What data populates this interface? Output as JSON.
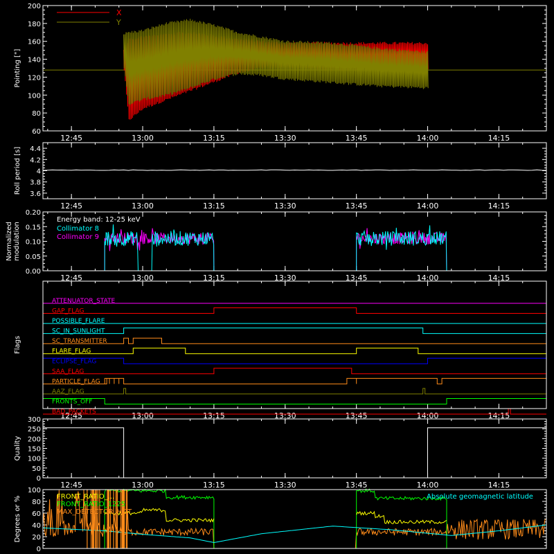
{
  "colors": {
    "background": "#000000",
    "axis": "#ffffff",
    "red": "#ff0000",
    "olive": "#808000",
    "cyan": "#00ffff",
    "magenta": "#ff00ff",
    "green": "#00ff00",
    "yellow": "#ffff00",
    "orange": "#ff8c1a",
    "blue": "#0000ff",
    "white": "#ffffff"
  },
  "chart_data": [
    {
      "id": "pointing",
      "type": "line",
      "ylabel": "Pointing [\"]",
      "xlim": [
        "12:39",
        "14:25"
      ],
      "ylim": [
        60,
        200
      ],
      "yticks": [
        60,
        80,
        100,
        120,
        140,
        160,
        180,
        200
      ],
      "xticks": [
        "12:45",
        "13:00",
        "13:15",
        "13:30",
        "13:45",
        "14:00",
        "14:15"
      ],
      "legend": {
        "position": "top-left",
        "entries": [
          "X",
          "Y"
        ]
      },
      "series": [
        {
          "name": "X",
          "color": "red",
          "x": [
            "12:56",
            "12:57",
            "13:00",
            "13:05",
            "13:10",
            "13:15",
            "13:20",
            "13:25",
            "13:30",
            "13:40",
            "13:50",
            "14:00"
          ],
          "upper": [
            150,
            162,
            165,
            168,
            170,
            166,
            162,
            160,
            158,
            158,
            158,
            158
          ],
          "lower": [
            128,
            72,
            85,
            95,
            105,
            115,
            125,
            130,
            132,
            128,
            128,
            128
          ]
        },
        {
          "name": "Y",
          "color": "olive",
          "x": [
            "12:56",
            "12:57",
            "13:00",
            "13:05",
            "13:10",
            "13:15",
            "13:20",
            "13:25",
            "13:30",
            "13:40",
            "13:50",
            "14:00"
          ],
          "upper": [
            168,
            170,
            172,
            180,
            184,
            178,
            170,
            165,
            160,
            158,
            152,
            148
          ],
          "lower": [
            130,
            90,
            95,
            100,
            108,
            118,
            124,
            122,
            118,
            114,
            110,
            108
          ]
        }
      ],
      "baseline": 128
    },
    {
      "id": "roll",
      "type": "line",
      "ylabel": "Roll period [s]",
      "xlim": [
        "12:39",
        "14:25"
      ],
      "ylim": [
        3.5,
        4.5
      ],
      "yticks": [
        3.6,
        3.8,
        4.0,
        4.2,
        4.4
      ],
      "xticks": [
        "12:45",
        "13:00",
        "13:15",
        "13:30",
        "13:45",
        "14:00",
        "14:15"
      ],
      "series": [
        {
          "color": "white",
          "value": 4.01
        }
      ]
    },
    {
      "id": "modulation",
      "type": "line",
      "ylabel": [
        "Normalized",
        "modulation"
      ],
      "xlim": [
        "12:39",
        "14:25"
      ],
      "ylim": [
        0,
        0.2
      ],
      "yticks": [
        "0.00",
        "0.05",
        "0.10",
        "0.15",
        "0.20"
      ],
      "xticks": [
        "12:45",
        "13:00",
        "13:15",
        "13:30",
        "13:45",
        "14:00",
        "14:15"
      ],
      "annotation": "Energy band: 12-25 keV",
      "legend": {
        "position": "top-left",
        "entries": [
          "Collimator 8",
          "Collimator 9"
        ]
      },
      "series": [
        {
          "name": "Collimator 8",
          "color": "cyan",
          "segments": [
            [
              "12:52",
              "13:15"
            ],
            [
              "13:45",
              "14:04"
            ]
          ],
          "gap": [
            "12:59",
            "13:02"
          ],
          "level": 0.11,
          "noise": 0.025
        },
        {
          "name": "Collimator 9",
          "color": "magenta",
          "segments": [
            [
              "12:52",
              "13:15"
            ],
            [
              "13:45",
              "14:04"
            ]
          ],
          "level": 0.11,
          "noise": 0.02
        }
      ]
    },
    {
      "id": "flags",
      "type": "line",
      "ylabel": "Flags",
      "xlim": [
        "12:39",
        "14:25"
      ],
      "xticks": [
        "12:45",
        "13:00",
        "13:15",
        "13:30",
        "13:45",
        "14:00",
        "14:15"
      ],
      "flags": [
        {
          "name": "ATTENUATOR_STATE",
          "color": "magenta",
          "on": []
        },
        {
          "name": "GAP_FLAG",
          "color": "red",
          "on": [
            [
              "13:15",
              "13:45"
            ]
          ]
        },
        {
          "name": "POSSIBLE_FLARE",
          "color": "cyan",
          "on": []
        },
        {
          "name": "SC_IN_SUNLIGHT",
          "color": "cyan",
          "on": [
            [
              "12:56",
              "13:59"
            ]
          ]
        },
        {
          "name": "SC_TRANSMITTER",
          "color": "orange",
          "on": [
            [
              "12:56",
              "12:57"
            ],
            [
              "12:58",
              "13:04"
            ]
          ]
        },
        {
          "name": "FLARE_FLAG",
          "color": "yellow",
          "on": [
            [
              "12:58",
              "13:09"
            ],
            [
              "13:45",
              "13:58"
            ]
          ]
        },
        {
          "name": "ECLIPSE_FLAG",
          "color": "blue",
          "on": [
            [
              "12:39",
              "12:56"
            ],
            [
              "14:00",
              "14:25"
            ]
          ]
        },
        {
          "name": "SAA_FLAG",
          "color": "red",
          "on": [
            [
              "13:15",
              "13:44"
            ]
          ]
        },
        {
          "name": "PARTICLE_FLAG",
          "color": "orange",
          "on": [
            [
              "12:52",
              "12:52"
            ],
            [
              "12:52",
              "12:53"
            ],
            [
              "12:53",
              "12:54"
            ],
            [
              "12:54",
              "12:55"
            ],
            [
              "12:55",
              "12:56"
            ],
            [
              "13:43",
              "13:45"
            ],
            [
              "13:45",
              "14:02"
            ],
            [
              "14:03",
              "14:25"
            ]
          ]
        },
        {
          "name": "AAZ_FLAG",
          "color": "olive",
          "on": [
            [
              "12:56",
              "12:56"
            ],
            [
              "13:59",
              "13:59"
            ]
          ]
        },
        {
          "name": "FRONTS_OFF",
          "color": "green",
          "on": [
            [
              "12:39",
              "12:52"
            ],
            [
              "14:04",
              "14:25"
            ]
          ]
        },
        {
          "name": "BAD_PACKETS",
          "color": "red",
          "on": [
            [
              "14:17",
              "14:17"
            ]
          ]
        }
      ]
    },
    {
      "id": "quality",
      "type": "line",
      "ylabel": "Quality",
      "xlim": [
        "12:39",
        "14:25"
      ],
      "ylim": [
        0,
        300
      ],
      "yticks": [
        0,
        50,
        100,
        150,
        200,
        250,
        300
      ],
      "xticks": [
        "12:45",
        "13:00",
        "13:15",
        "13:30",
        "13:45",
        "14:00",
        "14:15"
      ],
      "series": [
        {
          "color": "white",
          "x": [
            "12:39",
            "12:56",
            "12:56",
            "14:00",
            "14:00",
            "14:25"
          ],
          "y": [
            255,
            255,
            0,
            0,
            255,
            255
          ]
        }
      ]
    },
    {
      "id": "deg",
      "type": "line",
      "ylabel": "Degrees or %",
      "xlim": [
        "12:39",
        "14:25"
      ],
      "ylim": [
        0,
        100
      ],
      "yticks": [
        0,
        20,
        40,
        60,
        80,
        100
      ],
      "annotation": "Absolute geomagnetic latitude",
      "legend": {
        "position": "top-left",
        "entries": [
          "FRONT_RATIO_...",
          "FRONT_RATIO_1225",
          "MAX_DETECTOR_HOT"
        ]
      },
      "series": [
        {
          "name": "FRONT_RATIO_1225",
          "color": "green",
          "segments": [
            [
              "12:52",
              "13:15"
            ],
            [
              "13:45",
              "14:04"
            ]
          ]
        },
        {
          "name": "FRONT_RATIO",
          "color": "yellow",
          "segments": [
            [
              "12:52",
              "13:15"
            ],
            [
              "13:45",
              "14:04"
            ]
          ]
        },
        {
          "name": "MAX_DETECTOR_HOT",
          "color": "orange"
        },
        {
          "name": "Absolute geomagnetic latitude",
          "color": "cyan",
          "x": [
            "12:39",
            "12:52",
            "13:00",
            "13:10",
            "13:15",
            "13:25",
            "13:40",
            "13:52",
            "14:05",
            "14:15",
            "14:25"
          ],
          "y": [
            35,
            30,
            24,
            18,
            10,
            25,
            38,
            32,
            22,
            30,
            40
          ]
        }
      ]
    }
  ]
}
